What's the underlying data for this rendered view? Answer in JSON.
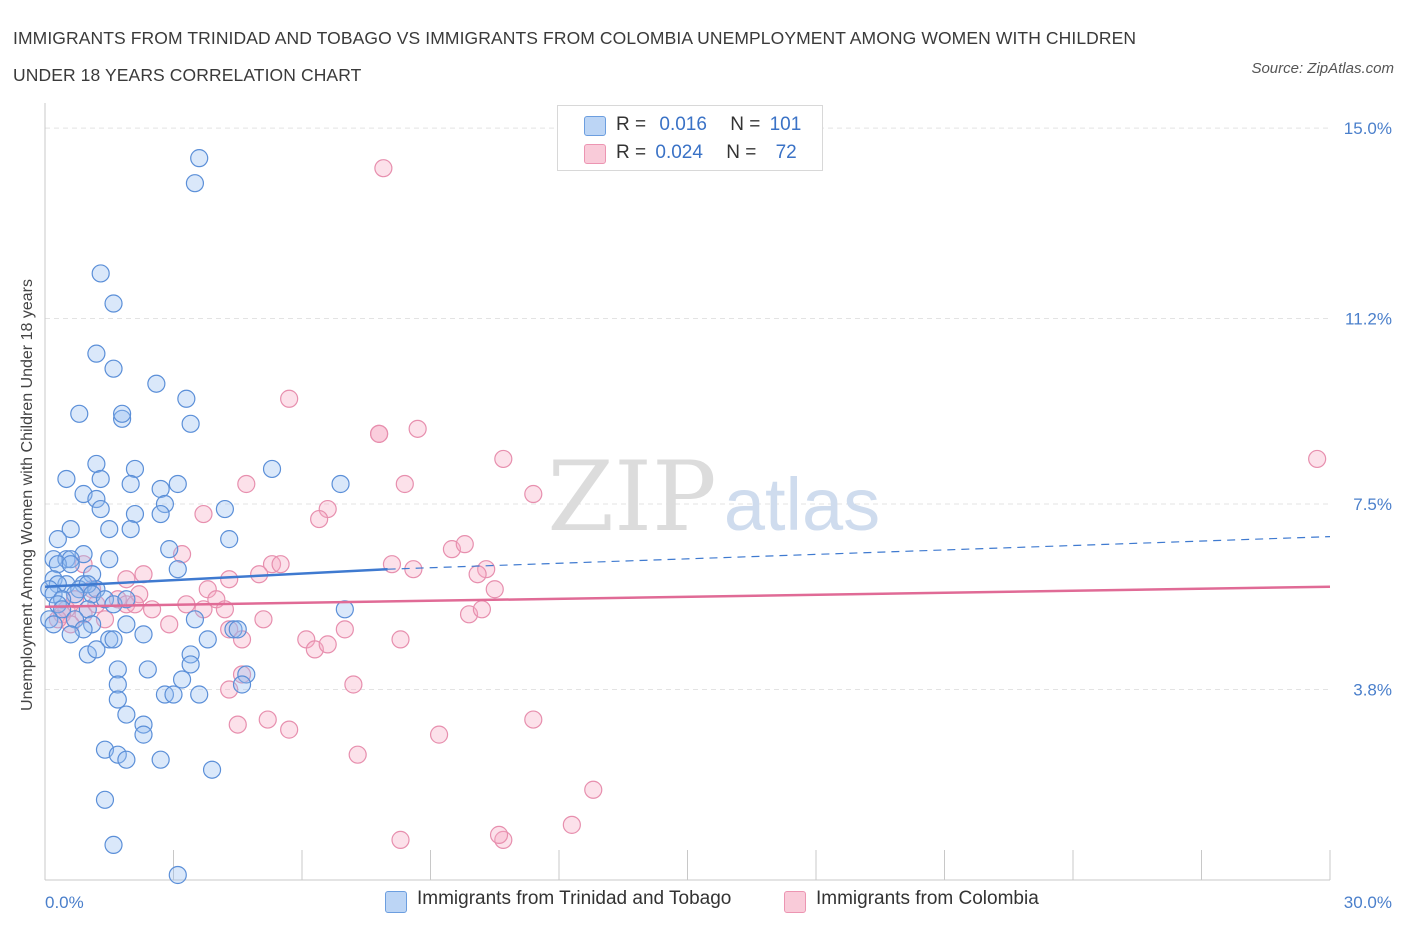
{
  "title": "IMMIGRANTS FROM TRINIDAD AND TOBAGO VS IMMIGRANTS FROM COLOMBIA UNEMPLOYMENT AMONG WOMEN WITH CHILDREN UNDER 18 YEARS CORRELATION CHART",
  "source": "Source: ZipAtlas.com",
  "watermark": {
    "zip": "ZIP",
    "atlas": "atlas"
  },
  "legend_top": {
    "rows": [
      {
        "r_label": "R =",
        "r_value": "0.016",
        "n_label": "N =",
        "n_value": "101",
        "color": "#a8c8f0"
      },
      {
        "r_label": "R =",
        "r_value": "0.024",
        "n_label": "N =",
        "n_value": "72",
        "color": "#f5b8cb"
      }
    ]
  },
  "legend_bottom": [
    {
      "label": "Immigrants from Trinidad and Tobago",
      "color": "#a8c8f0"
    },
    {
      "label": "Immigrants from Colombia",
      "color": "#f5b8cb"
    }
  ],
  "chart_data": {
    "type": "scatter",
    "title": "IMMIGRANTS FROM TRINIDAD AND TOBAGO VS IMMIGRANTS FROM COLOMBIA UNEMPLOYMENT AMONG WOMEN WITH CHILDREN UNDER 18 YEARS CORRELATION CHART",
    "xlabel": "",
    "ylabel": "Unemployment Among Women with Children Under 18 years",
    "xlim": [
      0,
      30
    ],
    "ylim": [
      0,
      15.5
    ],
    "x_tick_labels": [
      "0.0%",
      "30.0%"
    ],
    "y_ticks": [
      3.8,
      7.5,
      11.2,
      15.0
    ],
    "y_tick_labels": [
      "3.8%",
      "7.5%",
      "11.2%",
      "15.0%"
    ],
    "grid": true,
    "legend_position": "bottom",
    "colors": {
      "trinidad": "#4a86d8",
      "colombia": "#e77fa3",
      "trinidad_line": "#3f7ad0",
      "colombia_line": "#e06b96"
    },
    "series": [
      {
        "name": "Immigrants from Trinidad and Tobago",
        "r": 0.016,
        "n": 101,
        "trend": {
          "x": [
            0,
            8.0
          ],
          "y": [
            5.85,
            6.2
          ],
          "dashed_extension": {
            "x": [
              8.0,
              30.0
            ],
            "y": [
              6.2,
              6.85
            ]
          }
        },
        "points": [
          [
            3.6,
            14.4
          ],
          [
            3.5,
            13.9
          ],
          [
            1.3,
            12.1
          ],
          [
            1.6,
            11.5
          ],
          [
            1.2,
            10.5
          ],
          [
            1.6,
            10.2
          ],
          [
            2.6,
            9.9
          ],
          [
            3.3,
            9.6
          ],
          [
            0.8,
            9.3
          ],
          [
            1.8,
            9.2
          ],
          [
            1.8,
            9.3
          ],
          [
            3.4,
            9.1
          ],
          [
            1.2,
            8.3
          ],
          [
            2.1,
            8.2
          ],
          [
            5.3,
            8.2
          ],
          [
            0.5,
            8.0
          ],
          [
            1.3,
            8.0
          ],
          [
            2.0,
            7.9
          ],
          [
            2.7,
            7.8
          ],
          [
            3.1,
            7.9
          ],
          [
            6.9,
            7.9
          ],
          [
            0.9,
            7.7
          ],
          [
            1.2,
            7.6
          ],
          [
            2.8,
            7.5
          ],
          [
            1.3,
            7.4
          ],
          [
            4.2,
            7.4
          ],
          [
            2.1,
            7.3
          ],
          [
            2.7,
            7.3
          ],
          [
            0.6,
            7.0
          ],
          [
            1.5,
            7.0
          ],
          [
            2.0,
            7.0
          ],
          [
            4.3,
            6.8
          ],
          [
            0.3,
            6.8
          ],
          [
            2.9,
            6.6
          ],
          [
            0.2,
            6.4
          ],
          [
            0.5,
            6.4
          ],
          [
            0.9,
            6.5
          ],
          [
            0.6,
            6.4
          ],
          [
            0.3,
            6.3
          ],
          [
            0.6,
            6.3
          ],
          [
            1.5,
            6.4
          ],
          [
            3.1,
            6.2
          ],
          [
            1.1,
            6.1
          ],
          [
            0.2,
            6.0
          ],
          [
            0.5,
            5.9
          ],
          [
            0.9,
            5.9
          ],
          [
            0.3,
            5.9
          ],
          [
            1.2,
            5.8
          ],
          [
            0.1,
            5.8
          ],
          [
            0.8,
            5.8
          ],
          [
            1.0,
            5.9
          ],
          [
            0.2,
            5.7
          ],
          [
            0.7,
            5.7
          ],
          [
            1.1,
            5.7
          ],
          [
            0.4,
            5.6
          ],
          [
            1.4,
            5.6
          ],
          [
            0.3,
            5.5
          ],
          [
            1.6,
            5.5
          ],
          [
            0.4,
            5.4
          ],
          [
            1.9,
            5.6
          ],
          [
            1.0,
            5.4
          ],
          [
            0.1,
            5.2
          ],
          [
            0.7,
            5.2
          ],
          [
            0.2,
            5.1
          ],
          [
            1.1,
            5.1
          ],
          [
            1.9,
            5.1
          ],
          [
            3.5,
            5.2
          ],
          [
            0.9,
            5.0
          ],
          [
            0.6,
            4.9
          ],
          [
            2.3,
            4.9
          ],
          [
            4.4,
            5.0
          ],
          [
            7.0,
            5.4
          ],
          [
            1.5,
            4.8
          ],
          [
            1.6,
            4.8
          ],
          [
            3.8,
            4.8
          ],
          [
            4.5,
            5.0
          ],
          [
            1.0,
            4.5
          ],
          [
            1.2,
            4.6
          ],
          [
            3.4,
            4.5
          ],
          [
            1.7,
            4.2
          ],
          [
            2.4,
            4.2
          ],
          [
            3.4,
            4.3
          ],
          [
            4.7,
            4.1
          ],
          [
            3.2,
            4.0
          ],
          [
            1.7,
            3.9
          ],
          [
            4.6,
            3.9
          ],
          [
            2.8,
            3.7
          ],
          [
            3.0,
            3.7
          ],
          [
            3.6,
            3.7
          ],
          [
            1.7,
            3.6
          ],
          [
            1.9,
            3.3
          ],
          [
            2.3,
            3.1
          ],
          [
            2.3,
            2.9
          ],
          [
            1.4,
            2.6
          ],
          [
            1.7,
            2.5
          ],
          [
            1.9,
            2.4
          ],
          [
            2.7,
            2.4
          ],
          [
            3.9,
            2.2
          ],
          [
            1.4,
            1.6
          ],
          [
            1.6,
            0.7
          ],
          [
            3.1,
            0.1
          ]
        ]
      },
      {
        "name": "Immigrants from Colombia",
        "r": 0.024,
        "n": 72,
        "trend": {
          "x": [
            0,
            30.0
          ],
          "y": [
            5.45,
            5.85
          ]
        },
        "points": [
          [
            7.9,
            14.2
          ],
          [
            5.7,
            9.6
          ],
          [
            7.8,
            8.9
          ],
          [
            7.8,
            8.9
          ],
          [
            8.7,
            9.0
          ],
          [
            10.7,
            8.4
          ],
          [
            29.7,
            8.4
          ],
          [
            4.7,
            7.9
          ],
          [
            8.4,
            7.9
          ],
          [
            11.4,
            7.7
          ],
          [
            6.6,
            7.4
          ],
          [
            3.7,
            7.3
          ],
          [
            6.4,
            7.2
          ],
          [
            9.5,
            6.6
          ],
          [
            9.8,
            6.7
          ],
          [
            3.2,
            6.5
          ],
          [
            8.1,
            6.3
          ],
          [
            8.6,
            6.2
          ],
          [
            10.3,
            6.2
          ],
          [
            0.9,
            6.3
          ],
          [
            5.3,
            6.3
          ],
          [
            5.0,
            6.1
          ],
          [
            5.5,
            6.3
          ],
          [
            2.3,
            6.1
          ],
          [
            1.9,
            6.0
          ],
          [
            4.3,
            6.0
          ],
          [
            1.1,
            5.8
          ],
          [
            2.2,
            5.7
          ],
          [
            3.8,
            5.8
          ],
          [
            10.5,
            5.8
          ],
          [
            1.7,
            5.6
          ],
          [
            4.0,
            5.6
          ],
          [
            1.2,
            5.5
          ],
          [
            1.9,
            5.5
          ],
          [
            0.5,
            5.4
          ],
          [
            3.3,
            5.5
          ],
          [
            2.5,
            5.4
          ],
          [
            0.9,
            5.3
          ],
          [
            3.7,
            5.4
          ],
          [
            0.4,
            5.3
          ],
          [
            4.2,
            5.4
          ],
          [
            5.1,
            5.2
          ],
          [
            9.9,
            5.3
          ],
          [
            10.2,
            5.4
          ],
          [
            0.6,
            5.1
          ],
          [
            2.9,
            5.1
          ],
          [
            0.3,
            5.2
          ],
          [
            1.4,
            5.2
          ],
          [
            4.3,
            5.0
          ],
          [
            7.0,
            5.0
          ],
          [
            6.1,
            4.8
          ],
          [
            4.6,
            4.8
          ],
          [
            8.3,
            4.8
          ],
          [
            6.3,
            4.6
          ],
          [
            6.6,
            4.7
          ],
          [
            4.6,
            4.1
          ],
          [
            7.2,
            3.9
          ],
          [
            4.3,
            3.8
          ],
          [
            5.2,
            3.2
          ],
          [
            4.5,
            3.1
          ],
          [
            5.7,
            3.0
          ],
          [
            9.2,
            2.9
          ],
          [
            11.4,
            3.2
          ],
          [
            7.3,
            2.5
          ],
          [
            12.8,
            1.8
          ],
          [
            12.3,
            1.1
          ],
          [
            8.3,
            0.8
          ],
          [
            10.7,
            0.8
          ],
          [
            10.6,
            0.9
          ],
          [
            10.1,
            6.1
          ],
          [
            2.1,
            5.5
          ],
          [
            0.7,
            5.6
          ]
        ]
      }
    ]
  }
}
